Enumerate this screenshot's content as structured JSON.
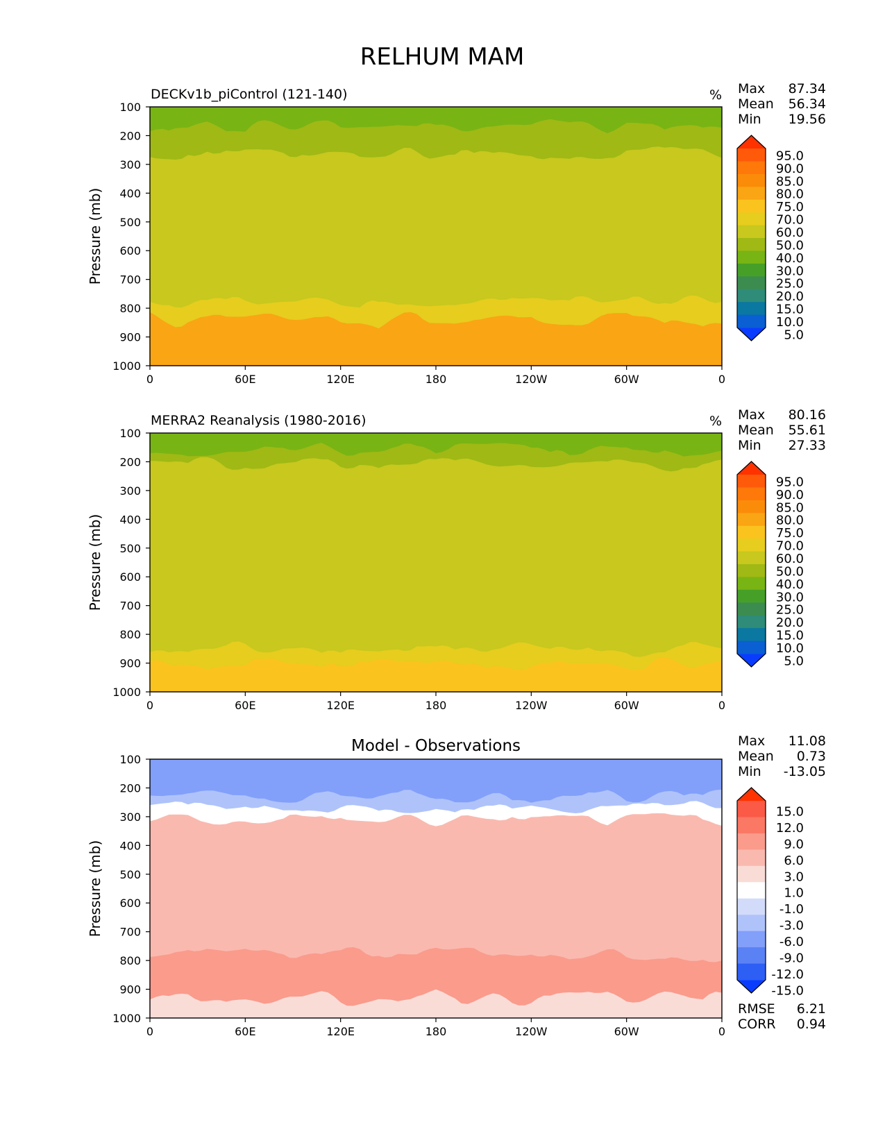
{
  "figure": {
    "title": "RELHUM MAM",
    "ylabel": "Pressure (mb)",
    "unit": "%",
    "x_ticks": [
      "0",
      "60E",
      "120E",
      "180",
      "120W",
      "60W",
      "0"
    ],
    "y_ticks": [
      "100",
      "200",
      "300",
      "400",
      "500",
      "600",
      "700",
      "800",
      "900",
      "1000"
    ],
    "stat_labels": {
      "max": "Max",
      "mean": "Mean",
      "min": "Min",
      "rmse": "RMSE",
      "corr": "CORR"
    }
  },
  "chart_data": [
    {
      "type": "heatmap",
      "title": "DECKv1b_piControl (121-140)",
      "unit": "%",
      "stats": {
        "max": "87.34",
        "mean": "56.34",
        "min": "19.56"
      },
      "xlim": [
        0,
        360
      ],
      "ylim": [
        1000,
        100
      ],
      "levels": [
        "5.0",
        "10.0",
        "15.0",
        "20.0",
        "25.0",
        "30.0",
        "40.0",
        "50.0",
        "60.0",
        "70.0",
        "75.0",
        "80.0",
        "85.0",
        "90.0",
        "95.0"
      ],
      "colors": [
        "#0a3cff",
        "#0a5fd2",
        "#0a78a0",
        "#2e8c78",
        "#3c8c50",
        "#46a028",
        "#78b414",
        "#a0b914",
        "#c8c81e",
        "#e6cd1e",
        "#fac31e",
        "#faa514",
        "#fa8c0a",
        "#ff780a",
        "#ff5a0a",
        "#ff3200"
      ],
      "approx_layers": [
        {
          "from_hpa": 100,
          "to_hpa": 170,
          "value": 30
        },
        {
          "from_hpa": 170,
          "to_hpa": 260,
          "value": 45
        },
        {
          "from_hpa": 260,
          "to_hpa": 780,
          "value": 55
        },
        {
          "from_hpa": 780,
          "to_hpa": 840,
          "value": 65
        },
        {
          "from_hpa": 840,
          "to_hpa": 1000,
          "value": 77
        }
      ]
    },
    {
      "type": "heatmap",
      "title": "MERRA2 Reanalysis (1980-2016)",
      "unit": "%",
      "stats": {
        "max": "80.16",
        "mean": "55.61",
        "min": "27.33"
      },
      "xlim": [
        0,
        360
      ],
      "ylim": [
        1000,
        100
      ],
      "levels": [
        "5.0",
        "10.0",
        "15.0",
        "20.0",
        "25.0",
        "30.0",
        "40.0",
        "50.0",
        "60.0",
        "70.0",
        "75.0",
        "80.0",
        "85.0",
        "90.0",
        "95.0"
      ],
      "colors": [
        "#0a3cff",
        "#0a5fd2",
        "#0a78a0",
        "#2e8c78",
        "#3c8c50",
        "#46a028",
        "#78b414",
        "#a0b914",
        "#c8c81e",
        "#e6cd1e",
        "#fac31e",
        "#faa514",
        "#fa8c0a",
        "#ff780a",
        "#ff5a0a",
        "#ff3200"
      ],
      "approx_layers": [
        {
          "from_hpa": 100,
          "to_hpa": 160,
          "value": 35
        },
        {
          "from_hpa": 160,
          "to_hpa": 210,
          "value": 45
        },
        {
          "from_hpa": 210,
          "to_hpa": 850,
          "value": 55
        },
        {
          "from_hpa": 850,
          "to_hpa": 900,
          "value": 65
        },
        {
          "from_hpa": 900,
          "to_hpa": 1000,
          "value": 72
        }
      ]
    },
    {
      "type": "heatmap",
      "title": "Model - Observations",
      "stats": {
        "max": "11.08",
        "mean": "0.73",
        "min": "-13.05",
        "rmse": "6.21",
        "corr": "0.94"
      },
      "xlim": [
        0,
        360
      ],
      "ylim": [
        1000,
        100
      ],
      "levels": [
        "-15.0",
        "-12.0",
        "-9.0",
        "-6.0",
        "-3.0",
        "-1.0",
        "1.0",
        "3.0",
        "6.0",
        "9.0",
        "12.0",
        "15.0"
      ],
      "colors": [
        "#0a3cff",
        "#2d5ff5",
        "#5a82f5",
        "#82a0fa",
        "#afc3fa",
        "#d2dcfa",
        "#ffffff",
        "#fadcd7",
        "#fab9af",
        "#fa9b8c",
        "#fa7864",
        "#fa5a46",
        "#ff3200"
      ],
      "approx_layers": [
        {
          "from_hpa": 100,
          "to_hpa": 230,
          "value": -8
        },
        {
          "from_hpa": 230,
          "to_hpa": 270,
          "value": -4
        },
        {
          "from_hpa": 270,
          "to_hpa": 310,
          "value": 0
        },
        {
          "from_hpa": 310,
          "to_hpa": 780,
          "value": 3
        },
        {
          "from_hpa": 780,
          "to_hpa": 930,
          "value": 7
        },
        {
          "from_hpa": 930,
          "to_hpa": 1000,
          "value": 2
        }
      ]
    }
  ]
}
